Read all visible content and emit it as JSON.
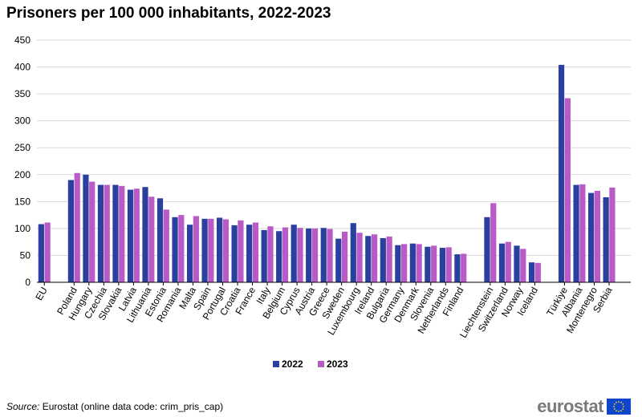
{
  "chart_data": {
    "type": "bar",
    "title": "Prisoners per 100 000 inhabitants, 2022-2023",
    "xlabel": "",
    "ylabel": "",
    "ylim": [
      0,
      450
    ],
    "yticks": [
      0,
      50,
      100,
      150,
      200,
      250,
      300,
      350,
      400,
      450
    ],
    "grid": true,
    "legend_position": "bottom-center",
    "groups": [
      [
        "EU"
      ],
      [
        "Poland",
        "Hungary",
        "Czechia",
        "Slovakia",
        "Latvia",
        "Lithuania",
        "Estonia",
        "Romania",
        "Malta",
        "Spain",
        "Portugal",
        "Croatia",
        "France",
        "Italy",
        "Belgium",
        "Cyprus",
        "Austria",
        "Greece",
        "Sweden",
        "Luxembourg",
        "Ireland",
        "Bulgaria",
        "Germany",
        "Denmark",
        "Slovenia",
        "Netherlands",
        "Finland"
      ],
      [
        "Liechtenstein",
        "Switzerland",
        "Norway",
        "Iceland"
      ],
      [
        "Türkiye",
        "Albania",
        "Montenegro",
        "Serbia"
      ]
    ],
    "categories": [
      "EU",
      "Poland",
      "Hungary",
      "Czechia",
      "Slovakia",
      "Latvia",
      "Lithuania",
      "Estonia",
      "Romania",
      "Malta",
      "Spain",
      "Portugal",
      "Croatia",
      "France",
      "Italy",
      "Belgium",
      "Cyprus",
      "Austria",
      "Greece",
      "Sweden",
      "Luxembourg",
      "Ireland",
      "Bulgaria",
      "Germany",
      "Denmark",
      "Slovenia",
      "Netherlands",
      "Finland",
      "Liechtenstein",
      "Switzerland",
      "Norway",
      "Iceland",
      "Türkiye",
      "Albania",
      "Montenegro",
      "Serbia"
    ],
    "series": [
      {
        "name": "2022",
        "color": "#2a3f9e",
        "values": [
          108,
          190,
          200,
          181,
          181,
          172,
          177,
          156,
          121,
          107,
          118,
          120,
          106,
          107,
          97,
          95,
          107,
          100,
          101,
          81,
          110,
          86,
          82,
          69,
          72,
          66,
          64,
          52,
          121,
          72,
          68,
          37,
          404,
          181,
          166,
          158
        ]
      },
      {
        "name": "2023",
        "color": "#b95bc6",
        "values": [
          111,
          203,
          187,
          181,
          179,
          174,
          159,
          135,
          125,
          123,
          118,
          117,
          115,
          111,
          104,
          102,
          101,
          100,
          99,
          94,
          92,
          89,
          85,
          71,
          71,
          68,
          65,
          53,
          147,
          75,
          62,
          36,
          342,
          182,
          170,
          176
        ]
      }
    ]
  },
  "footer": {
    "source_label": "Source:",
    "source_text": " Eurostat (online data code: crim_pris_cap)",
    "logo_text": "eurostat"
  },
  "colors": {
    "grid": "#d9d9d9",
    "axis": "#000000",
    "flag_blue": "#0e47cb",
    "flag_star": "#ffd617"
  }
}
